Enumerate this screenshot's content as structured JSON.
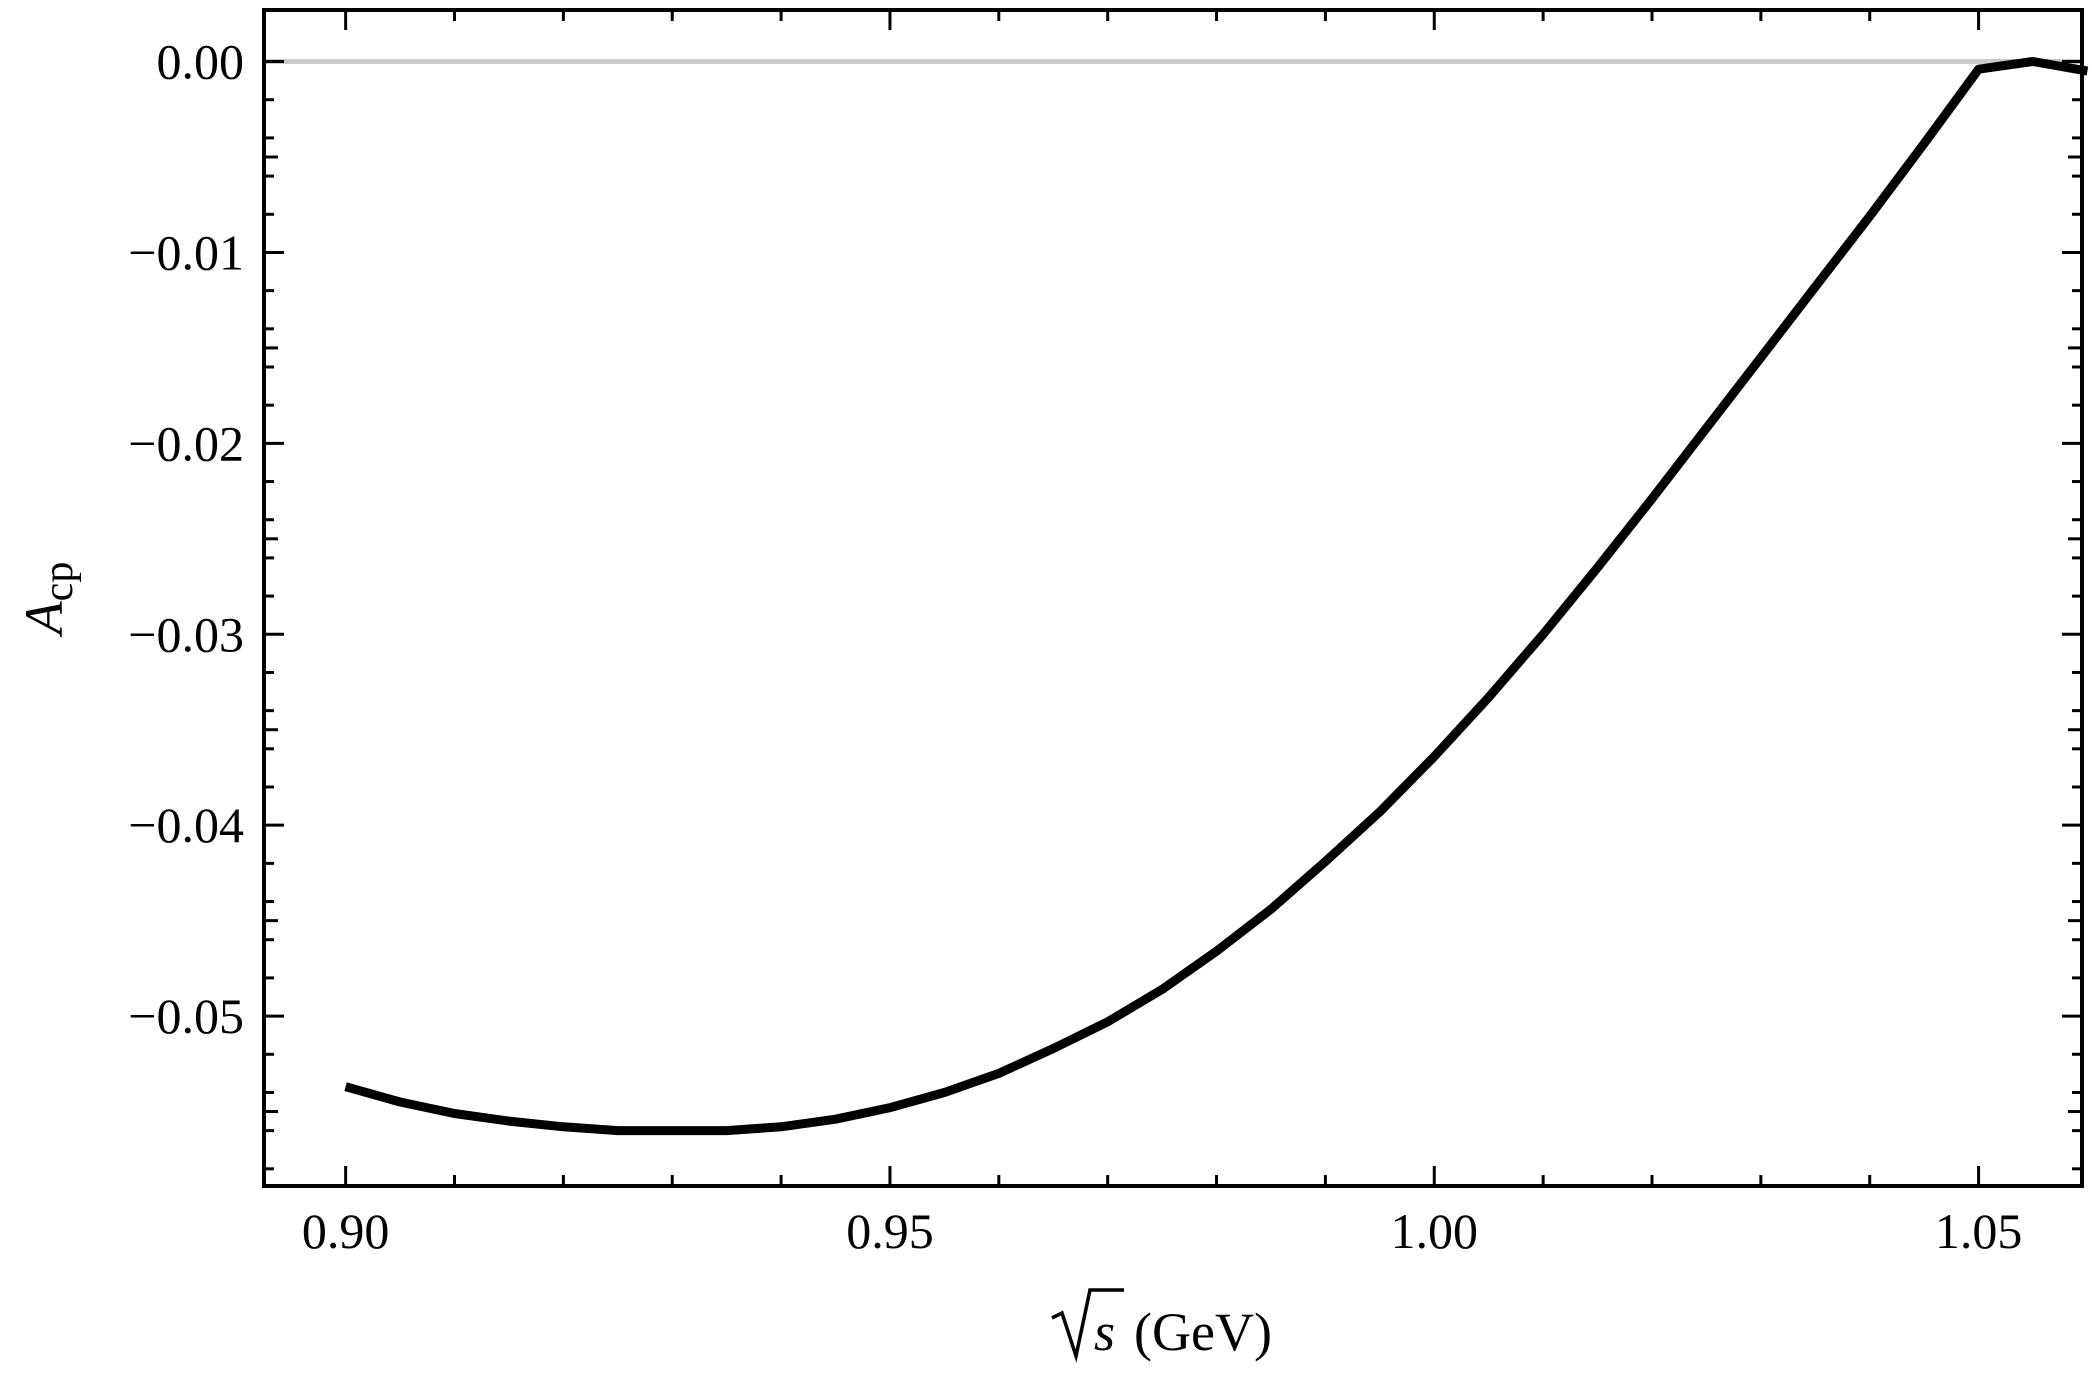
{
  "chart_data": {
    "type": "line",
    "xlabel": "√s (GeV)",
    "xlabel_parts": {
      "radicand": "s",
      "unit": "(GeV)"
    },
    "ylabel": "Acp",
    "ylabel_parts": {
      "main": "A",
      "sub": "cp"
    },
    "xlim": [
      0.8925,
      1.0595
    ],
    "ylim": [
      -0.0589,
      0.0027
    ],
    "x_ticks": [
      0.9,
      0.95,
      1.0,
      1.05
    ],
    "x_tick_labels": [
      "0.90",
      "0.95",
      "1.00",
      "1.05"
    ],
    "y_ticks": [
      0.0,
      -0.01,
      -0.02,
      -0.03,
      -0.04,
      -0.05
    ],
    "y_tick_labels": [
      "0.00",
      "−0.01",
      "−0.02",
      "−0.03",
      "−0.04",
      "−0.05"
    ],
    "grid": false,
    "reference_line": {
      "y": 0.0,
      "color": "#c8c8c8"
    },
    "line_color": "#000000",
    "series": [
      {
        "x": [
          0.9,
          0.905,
          0.91,
          0.915,
          0.92,
          0.925,
          0.93,
          0.935,
          0.94,
          0.945,
          0.95,
          0.955,
          0.96,
          0.965,
          0.97,
          0.975,
          0.98,
          0.985,
          0.99,
          0.995,
          1.0,
          1.005,
          1.01,
          1.015,
          1.02,
          1.025,
          1.03,
          1.035,
          1.04,
          1.045,
          1.05,
          1.055,
          1.06
        ],
        "y": [
          -0.0537,
          -0.0545,
          -0.0551,
          -0.0555,
          -0.0558,
          -0.056,
          -0.056,
          -0.056,
          -0.0558,
          -0.0554,
          -0.0548,
          -0.054,
          -0.053,
          -0.0517,
          -0.0503,
          -0.0486,
          -0.0466,
          -0.0444,
          -0.0419,
          -0.0393,
          -0.0364,
          -0.0333,
          -0.03,
          -0.0265,
          -0.0229,
          -0.0192,
          -0.0155,
          -0.0118,
          -0.0081,
          -0.0043,
          -0.0004,
          0.0,
          -0.0005
        ]
      }
    ]
  }
}
